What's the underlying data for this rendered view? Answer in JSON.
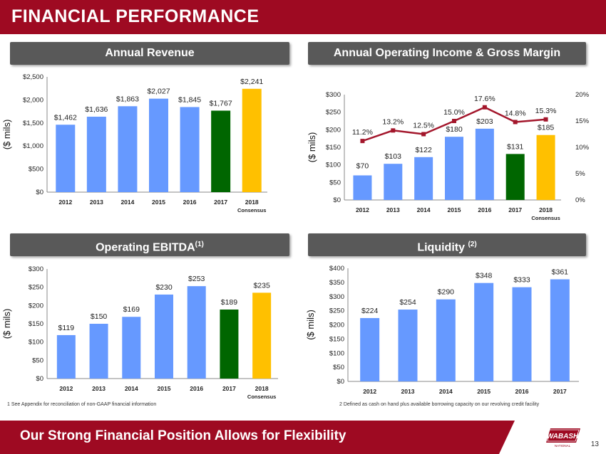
{
  "slide": {
    "title": "Financial Performance",
    "title_display": "FINANCIAL PERFORMANCE",
    "bottom_message": "Our Strong Financial Position Allows for Flexibility",
    "page_number": "13",
    "logo_text": "WABASH",
    "logo_subtext": "NATIONAL",
    "footnote_1": "1  See Appendix for reconciliation of non-GAAP  financial information",
    "footnote_2": "2  Defined as cash on hand plus available borrowing  capacity on our revolving credit facility"
  },
  "colors": {
    "brand_red": "#9e0a22",
    "bar_blue": "#6699ff",
    "bar_green": "#006600",
    "bar_gold": "#ffc000",
    "line_red": "#a3162b",
    "header_gray": "#595959"
  },
  "panels": {
    "revenue_header": "Annual Revenue",
    "operating_header": "Annual Operating Income & Gross Margin",
    "ebitda_header": "Operating EBITDA",
    "ebitda_sup": "(1)",
    "liquidity_header": "Liquidity",
    "liquidity_sup": "(2)"
  },
  "chart_data": [
    {
      "type": "bar",
      "title": "Annual Revenue",
      "ylabel": "($ mils)",
      "categories": [
        "2012",
        "2013",
        "2014",
        "2015",
        "2016",
        "2017",
        "2018"
      ],
      "category_sublabels": [
        "",
        "",
        "",
        "",
        "",
        "",
        "Consensus"
      ],
      "values": [
        1462,
        1636,
        1863,
        2027,
        1845,
        1767,
        2241
      ],
      "value_labels": [
        "$1,462",
        "$1,636",
        "$1,863",
        "$2,027",
        "$1,845",
        "$1,767",
        "$2,241"
      ],
      "bar_colors": [
        "#6699ff",
        "#6699ff",
        "#6699ff",
        "#6699ff",
        "#6699ff",
        "#006600",
        "#ffc000"
      ],
      "ylim": [
        0,
        2500
      ],
      "yticks": [
        0,
        500,
        1000,
        1500,
        2000,
        2500
      ],
      "ytick_labels": [
        "$0",
        "$500",
        "$1,000",
        "$1,500",
        "$2,000",
        "$2,500"
      ]
    },
    {
      "type": "bar",
      "title": "Annual Operating Income & Gross Margin",
      "ylabel": "($ mils)",
      "categories": [
        "2012",
        "2013",
        "2014",
        "2015",
        "2016",
        "2017",
        "2018"
      ],
      "category_sublabels": [
        "",
        "",
        "",
        "",
        "",
        "",
        "Consensus"
      ],
      "values": [
        70,
        103,
        122,
        180,
        203,
        131,
        185
      ],
      "value_labels": [
        "$70",
        "$103",
        "$122",
        "$180",
        "$203",
        "$131",
        "$185"
      ],
      "bar_colors": [
        "#6699ff",
        "#6699ff",
        "#6699ff",
        "#6699ff",
        "#6699ff",
        "#006600",
        "#ffc000"
      ],
      "ylim": [
        0,
        300
      ],
      "yticks": [
        0,
        50,
        100,
        150,
        200,
        250,
        300
      ],
      "ytick_labels": [
        "$0",
        "$50",
        "$100",
        "$150",
        "$200",
        "$250",
        "$300"
      ],
      "secondary": {
        "type": "line",
        "values": [
          11.2,
          13.2,
          12.5,
          15.0,
          17.6,
          14.8,
          15.3
        ],
        "value_labels": [
          "11.2%",
          "13.2%",
          "12.5%",
          "15.0%",
          "17.6%",
          "14.8%",
          "15.3%"
        ],
        "ylim": [
          0,
          20
        ],
        "yticks": [
          0,
          5,
          10,
          15,
          20
        ],
        "ytick_labels": [
          "0%",
          "5%",
          "10%",
          "15%",
          "20%"
        ]
      }
    },
    {
      "type": "bar",
      "title": "Operating EBITDA",
      "ylabel": "($ mils)",
      "categories": [
        "2012",
        "2013",
        "2014",
        "2015",
        "2016",
        "2017",
        "2018"
      ],
      "category_sublabels": [
        "",
        "",
        "",
        "",
        "",
        "",
        "Consensus"
      ],
      "values": [
        119,
        150,
        169,
        230,
        253,
        189,
        235
      ],
      "value_labels": [
        "$119",
        "$150",
        "$169",
        "$230",
        "$253",
        "$189",
        "$235"
      ],
      "bar_colors": [
        "#6699ff",
        "#6699ff",
        "#6699ff",
        "#6699ff",
        "#6699ff",
        "#006600",
        "#ffc000"
      ],
      "ylim": [
        0,
        300
      ],
      "yticks": [
        0,
        50,
        100,
        150,
        200,
        250,
        300
      ],
      "ytick_labels": [
        "$0",
        "$50",
        "$100",
        "$150",
        "$200",
        "$250",
        "$300"
      ]
    },
    {
      "type": "bar",
      "title": "Liquidity",
      "ylabel": "($ mils)",
      "categories": [
        "2012",
        "2013",
        "2014",
        "2015",
        "2016",
        "2017"
      ],
      "category_sublabels": [
        "",
        "",
        "",
        "",
        "",
        ""
      ],
      "values": [
        224,
        254,
        290,
        348,
        333,
        361
      ],
      "value_labels": [
        "$224",
        "$254",
        "$290",
        "$348",
        "$333",
        "$361"
      ],
      "bar_colors": [
        "#6699ff",
        "#6699ff",
        "#6699ff",
        "#6699ff",
        "#6699ff",
        "#6699ff"
      ],
      "ylim": [
        0,
        400
      ],
      "yticks": [
        0,
        50,
        100,
        150,
        200,
        250,
        300,
        350,
        400
      ],
      "ytick_labels": [
        "$0",
        "$50",
        "$100",
        "$150",
        "$200",
        "$250",
        "$300",
        "$350",
        "$400"
      ]
    }
  ]
}
